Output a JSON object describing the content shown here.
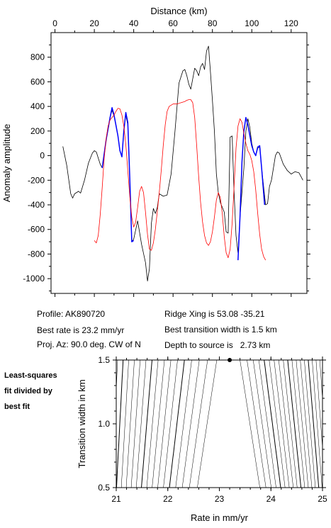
{
  "chart_data": [
    {
      "type": "line",
      "xlabel": "Distance (km)",
      "ylabel": "Anomaly amplitude",
      "xlim": [
        -2,
        128
      ],
      "ylim": [
        -1120,
        1000
      ],
      "x_ticks": [
        0,
        20,
        40,
        60,
        80,
        100,
        120
      ],
      "y_ticks": [
        -1000,
        -800,
        -600,
        -400,
        -200,
        0,
        200,
        400,
        600,
        800
      ],
      "axis_position": "top",
      "grid": false,
      "series": [
        {
          "color": "#000000",
          "points": [
            [
              4,
              75
            ],
            [
              6,
              -80
            ],
            [
              8,
              -310
            ],
            [
              9,
              -345
            ],
            [
              10,
              -310
            ],
            [
              12,
              -290
            ],
            [
              13,
              -305
            ],
            [
              15,
              -200
            ],
            [
              17,
              -60
            ],
            [
              19,
              20
            ],
            [
              20,
              40
            ],
            [
              21,
              30
            ],
            [
              23,
              -70
            ],
            [
              24,
              -100
            ],
            [
              26,
              130
            ],
            [
              28,
              310
            ],
            [
              29,
              370
            ],
            [
              30,
              320
            ],
            [
              32,
              160
            ],
            [
              33,
              40
            ],
            [
              34,
              -10
            ],
            [
              35,
              210
            ],
            [
              36,
              330
            ],
            [
              37,
              250
            ],
            [
              38,
              -200
            ],
            [
              39,
              -700
            ],
            [
              40,
              -680
            ],
            [
              42,
              -530
            ],
            [
              44,
              -720
            ],
            [
              46,
              -870
            ],
            [
              47,
              -1020
            ],
            [
              48,
              -920
            ],
            [
              49,
              -550
            ],
            [
              50,
              -430
            ],
            [
              51,
              -470
            ],
            [
              52,
              -420
            ],
            [
              53,
              -310
            ],
            [
              55,
              -330
            ],
            [
              57,
              -320
            ],
            [
              59,
              -150
            ],
            [
              61,
              200
            ],
            [
              63,
              590
            ],
            [
              65,
              690
            ],
            [
              66,
              700
            ],
            [
              67,
              650
            ],
            [
              68,
              580
            ],
            [
              69,
              540
            ],
            [
              71,
              710
            ],
            [
              72,
              690
            ],
            [
              73,
              650
            ],
            [
              74,
              720
            ],
            [
              75,
              750
            ],
            [
              76,
              700
            ],
            [
              77,
              850
            ],
            [
              78,
              890
            ],
            [
              79,
              680
            ],
            [
              80,
              450
            ],
            [
              81,
              200
            ],
            [
              82,
              -150
            ],
            [
              83,
              -300
            ],
            [
              84,
              -380
            ],
            [
              85,
              -420
            ],
            [
              86,
              -460
            ],
            [
              87,
              -620
            ],
            [
              88,
              -630
            ],
            [
              89,
              150
            ],
            [
              90,
              160
            ],
            [
              91,
              -300
            ],
            [
              92,
              -650
            ],
            [
              93,
              -790
            ],
            [
              94,
              -500
            ],
            [
              96,
              -100
            ],
            [
              97,
              200
            ],
            [
              98,
              300
            ],
            [
              99,
              230
            ],
            [
              100,
              100
            ],
            [
              101,
              30
            ],
            [
              102,
              0
            ],
            [
              103,
              60
            ],
            [
              104,
              70
            ],
            [
              105,
              -100
            ],
            [
              106,
              -250
            ],
            [
              107,
              -400
            ],
            [
              108,
              -390
            ],
            [
              109,
              -250
            ],
            [
              110,
              -200
            ],
            [
              111,
              -100
            ],
            [
              112,
              0
            ],
            [
              113,
              30
            ],
            [
              114,
              20
            ],
            [
              116,
              -70
            ],
            [
              118,
              -120
            ],
            [
              120,
              -150
            ],
            [
              122,
              -130
            ],
            [
              124,
              -140
            ],
            [
              126,
              -200
            ]
          ]
        },
        {
          "color": "#0000ff",
          "points": [
            [
              24,
              -100
            ],
            [
              26,
              130
            ],
            [
              28,
              310
            ],
            [
              29,
              390
            ],
            [
              30,
              330
            ],
            [
              32,
              160
            ],
            [
              33,
              40
            ],
            [
              34,
              -10
            ],
            [
              35,
              200
            ],
            [
              36,
              350
            ],
            [
              37,
              270
            ],
            [
              38,
              -180
            ],
            [
              39,
              -700
            ],
            [
              40,
              -690
            ],
            [
              93,
              -850
            ],
            [
              94,
              -500
            ],
            [
              95,
              -50
            ],
            [
              96,
              200
            ],
            [
              97,
              310
            ],
            [
              98,
              250
            ],
            [
              100,
              80
            ],
            [
              101,
              30
            ],
            [
              102,
              0
            ],
            [
              103,
              70
            ],
            [
              104,
              80
            ],
            [
              105,
              -100
            ],
            [
              106,
              -300
            ],
            [
              106.5,
              -400
            ]
          ]
        },
        {
          "color": "#ff0000",
          "points": [
            [
              20,
              -690
            ],
            [
              21,
              -710
            ],
            [
              22,
              -650
            ],
            [
              23,
              -480
            ],
            [
              24,
              -260
            ],
            [
              25,
              -20
            ],
            [
              26,
              140
            ],
            [
              27,
              240
            ],
            [
              28,
              290
            ],
            [
              29,
              310
            ],
            [
              30,
              330
            ],
            [
              31,
              360
            ],
            [
              32,
              385
            ],
            [
              33,
              380
            ],
            [
              34,
              330
            ],
            [
              35,
              240
            ],
            [
              36,
              90
            ],
            [
              37,
              -120
            ],
            [
              38,
              -330
            ],
            [
              39,
              -500
            ],
            [
              40,
              -580
            ],
            [
              41,
              -540
            ],
            [
              42,
              -420
            ],
            [
              43,
              -290
            ],
            [
              44,
              -250
            ],
            [
              45,
              -300
            ],
            [
              46,
              -460
            ],
            [
              47,
              -640
            ],
            [
              48,
              -760
            ],
            [
              49,
              -770
            ],
            [
              50,
              -710
            ],
            [
              51,
              -600
            ],
            [
              52,
              -450
            ],
            [
              53,
              -300
            ],
            [
              54,
              -120
            ],
            [
              55,
              80
            ],
            [
              56,
              250
            ],
            [
              57,
              360
            ],
            [
              58,
              400
            ],
            [
              60,
              420
            ],
            [
              62,
              420
            ],
            [
              64,
              430
            ],
            [
              66,
              440
            ],
            [
              67,
              450
            ],
            [
              68,
              455
            ],
            [
              69,
              455
            ],
            [
              70,
              430
            ],
            [
              71,
              310
            ],
            [
              72,
              80
            ],
            [
              73,
              -170
            ],
            [
              74,
              -380
            ],
            [
              75,
              -540
            ],
            [
              76,
              -650
            ],
            [
              77,
              -710
            ],
            [
              78,
              -730
            ],
            [
              79,
              -700
            ],
            [
              80,
              -620
            ],
            [
              81,
              -500
            ],
            [
              82,
              -360
            ],
            [
              83,
              -300
            ],
            [
              84,
              -340
            ],
            [
              85,
              -470
            ],
            [
              86,
              -660
            ],
            [
              87,
              -790
            ],
            [
              88,
              -830
            ],
            [
              89,
              -760
            ],
            [
              90,
              -550
            ],
            [
              91,
              -250
            ],
            [
              92,
              60
            ],
            [
              93,
              240
            ],
            [
              94,
              300
            ],
            [
              95,
              270
            ],
            [
              96,
              180
            ],
            [
              97,
              100
            ],
            [
              98,
              40
            ],
            [
              99,
              10
            ],
            [
              100,
              -40
            ],
            [
              101,
              -130
            ],
            [
              102,
              -280
            ],
            [
              103,
              -470
            ],
            [
              104,
              -640
            ],
            [
              105,
              -760
            ],
            [
              106,
              -820
            ],
            [
              107,
              -850
            ]
          ]
        }
      ]
    },
    {
      "type": "contour",
      "xlabel": "Rate in mm/yr",
      "ylabel": "Transition width in km",
      "xlim": [
        21,
        25
      ],
      "ylim": [
        0.5,
        1.5
      ],
      "x_ticks": [
        21,
        22,
        23,
        24,
        25
      ],
      "y_ticks": [
        0.5,
        1.0,
        1.5
      ],
      "minimum": {
        "x": 23.2,
        "y": 1.5
      },
      "grid": false
    }
  ],
  "info": {
    "profile": "Profile: AK890720",
    "best_rate": "Best rate is 23.2 mm/yr",
    "proj_az": "Proj. Az: 90.0 deg. CW of N",
    "ridge_xing": "Ridge Xing is 53.08 -35.21",
    "best_width": "Best transition width is 1.5 km",
    "depth": "Depth to source is   2.73 km"
  },
  "side_label": [
    "Least-squares",
    "fit divided by",
    "best fit"
  ]
}
